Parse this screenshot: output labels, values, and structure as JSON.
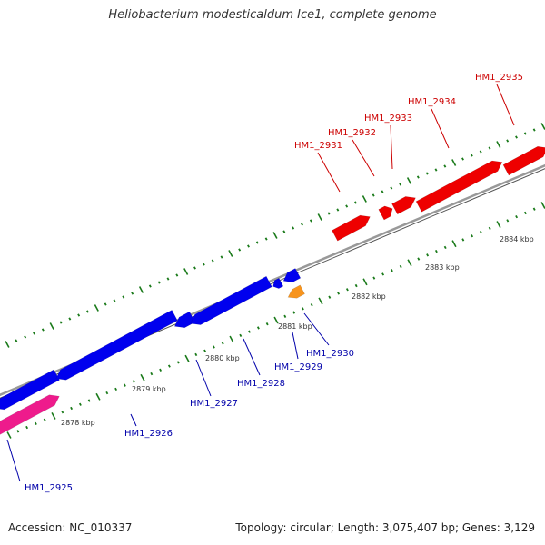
{
  "title": "Heliobacterium modesticaldum Ice1, complete genome",
  "footer": {
    "accession": "Accession: NC_010337",
    "topology": "Topology: circular; Length: 3,075,407 bp; Genes: 3,129"
  },
  "colors": {
    "backbone": "#808080",
    "tick": "#1a7a1a",
    "forward_gene": "#ee0000",
    "reverse_gene": "#0000ee",
    "pink_gene": "#ee1b8c",
    "orange_gene": "#f7941d",
    "forward_label": "#cc0000",
    "reverse_label": "#0000aa"
  },
  "scale_labels": [
    "2878 kbp",
    "2879 kbp",
    "2880 kbp",
    "2881 kbp",
    "2882 kbp",
    "2883 kbp",
    "2884 kbp"
  ],
  "genes": [
    {
      "name": "HM1_2925",
      "color": "pink_gene"
    },
    {
      "name": "HM1_2926",
      "color": "reverse_gene"
    },
    {
      "name": "HM1_2927",
      "color": "reverse_gene"
    },
    {
      "name": "HM1_2928",
      "color": "reverse_gene"
    },
    {
      "name": "HM1_2929",
      "color": "orange_gene"
    },
    {
      "name": "HM1_2930",
      "color": "reverse_gene"
    },
    {
      "name": "HM1_2931",
      "color": "forward_gene"
    },
    {
      "name": "HM1_2932",
      "color": "forward_gene"
    },
    {
      "name": "HM1_2933",
      "color": "forward_gene"
    },
    {
      "name": "HM1_2934",
      "color": "forward_gene"
    },
    {
      "name": "HM1_2935",
      "color": "forward_gene"
    }
  ]
}
